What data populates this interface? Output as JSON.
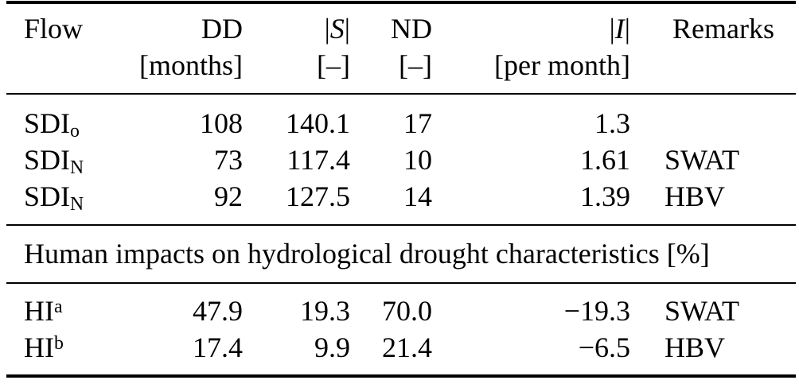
{
  "table": {
    "colors": {
      "text": "#000000",
      "rule": "#000000",
      "background": "#ffffff"
    },
    "headers": {
      "flow": {
        "line1": "Flow",
        "line2": ""
      },
      "dd": {
        "line1": "DD",
        "line2": "[months]"
      },
      "s": {
        "bar": "|",
        "var": "S",
        "line2": "[–]"
      },
      "nd": {
        "line1": "ND",
        "line2": "[–]"
      },
      "i": {
        "bar": "|",
        "var": "I",
        "line2": "[per month]"
      },
      "remarks": {
        "line1": "Remarks",
        "line2": ""
      }
    },
    "flow_rows": [
      {
        "flow_base": "SDI",
        "flow_sub": "o",
        "dd": "108",
        "s": "140.1",
        "nd": "17",
        "i": "1.3",
        "remarks": ""
      },
      {
        "flow_base": "SDI",
        "flow_sub": "N",
        "dd": "73",
        "s": "117.4",
        "nd": "10",
        "i": "1.61",
        "remarks": "SWAT"
      },
      {
        "flow_base": "SDI",
        "flow_sub": "N",
        "dd": "92",
        "s": "127.5",
        "nd": "14",
        "i": "1.39",
        "remarks": "HBV"
      }
    ],
    "section_title": "Human impacts on hydrological drought characteristics [%]",
    "hi_rows": [
      {
        "flow_base": "HI",
        "flow_sup": "a",
        "dd": "47.9",
        "s": "19.3",
        "nd": "70.0",
        "i": "−19.3",
        "remarks": "SWAT"
      },
      {
        "flow_base": "HI",
        "flow_sup": "b",
        "dd": "17.4",
        "s": "9.9",
        "nd": "21.4",
        "i": "−6.5",
        "remarks": "HBV"
      }
    ]
  }
}
